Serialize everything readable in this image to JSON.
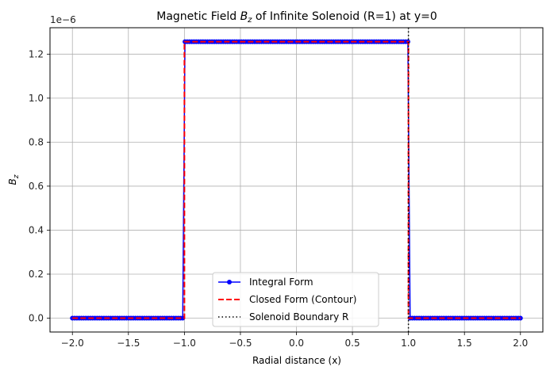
{
  "chart_data": {
    "type": "line",
    "title_prefix": "Magnetic Field ",
    "title_symbol": "B",
    "title_subscript": "z",
    "title_suffix": " of Infinite Solenoid (R=1) at y=0",
    "xlabel": "Radial distance (x)",
    "ylabel_symbol": "B",
    "ylabel_subscript": "z",
    "offset_label": "1e−6",
    "xlim": [
      -2.2,
      2.2
    ],
    "ylim": [
      -0.063,
      1.32
    ],
    "y_scale_factor": 1e-06,
    "xticks": [
      -2.0,
      -1.5,
      -1.0,
      -0.5,
      0.0,
      0.5,
      1.0,
      1.5,
      2.0
    ],
    "xtick_labels": [
      "−2.0",
      "−1.5",
      "−1.0",
      "−0.5",
      "0.0",
      "0.5",
      "1.0",
      "1.5",
      "2.0"
    ],
    "yticks": [
      0.0,
      0.2,
      0.4,
      0.6,
      0.8,
      1.0,
      1.2
    ],
    "ytick_labels": [
      "0.0",
      "0.2",
      "0.4",
      "0.6",
      "0.8",
      "1.0",
      "1.2"
    ],
    "grid": true,
    "legend_position": "lower center",
    "series": [
      {
        "name": "Integral Form",
        "style": "solid-with-markers",
        "color": "#0000ff",
        "x_range": [
          -2.0,
          2.0
        ],
        "n_points": 200,
        "inside_value": 1.2566,
        "outside_value": 0.0,
        "boundary": 1.0
      },
      {
        "name": "Closed Form (Contour)",
        "style": "dashed",
        "color": "#ff0000",
        "x_range": [
          -2.0,
          2.0
        ],
        "inside_value": 1.2566,
        "outside_value": 0.0,
        "boundary": 1.0
      },
      {
        "name": "Solenoid Boundary R",
        "style": "dotted-vertical",
        "color": "#000000",
        "x": 1.0
      }
    ]
  }
}
